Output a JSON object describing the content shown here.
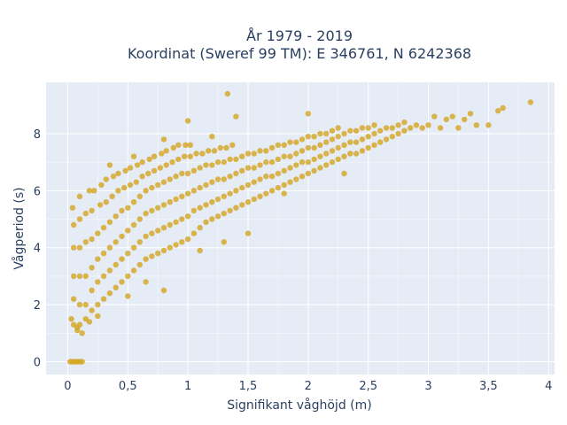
{
  "chart_data": {
    "type": "scatter",
    "title_line1": "År 1979 - 2019",
    "title_line2": "Koordinat (Sweref 99 TM): E 346761, N 6242368",
    "xlabel": "Signifikant våghöjd (m)",
    "ylabel": "Vågperiod (s)",
    "xlim": [
      -0.18,
      4.05
    ],
    "ylim": [
      -0.45,
      9.8
    ],
    "xticks": [
      0,
      0.5,
      1,
      1.5,
      2,
      2.5,
      3,
      3.5,
      4
    ],
    "xtick_labels": [
      "0",
      "0,5",
      "1",
      "1,5",
      "2",
      "2,5",
      "3",
      "3,5",
      "4"
    ],
    "yticks": [
      0,
      2,
      4,
      6,
      8
    ],
    "ytick_labels": [
      "0",
      "2",
      "4",
      "6",
      "8"
    ],
    "grid": true,
    "plot_bgcolor": "#E5ECF6",
    "marker_color": "#D4A520",
    "points": [
      [
        0.02,
        0.0
      ],
      [
        0.04,
        0.0
      ],
      [
        0.06,
        0.0
      ],
      [
        0.08,
        0.0
      ],
      [
        0.1,
        0.0
      ],
      [
        0.12,
        0.0
      ],
      [
        0.03,
        1.5
      ],
      [
        0.05,
        1.3
      ],
      [
        0.08,
        1.2
      ],
      [
        0.1,
        1.3
      ],
      [
        0.15,
        1.5
      ],
      [
        0.05,
        2.2
      ],
      [
        0.05,
        3.0
      ],
      [
        0.05,
        4.0
      ],
      [
        0.05,
        4.8
      ],
      [
        0.04,
        5.4
      ],
      [
        0.1,
        2.0
      ],
      [
        0.1,
        3.0
      ],
      [
        0.1,
        4.0
      ],
      [
        0.1,
        5.0
      ],
      [
        0.1,
        5.8
      ],
      [
        0.15,
        2.0
      ],
      [
        0.15,
        3.0
      ],
      [
        0.15,
        4.2
      ],
      [
        0.15,
        5.2
      ],
      [
        0.18,
        6.0
      ],
      [
        0.2,
        1.8
      ],
      [
        0.2,
        2.5
      ],
      [
        0.2,
        3.3
      ],
      [
        0.2,
        4.3
      ],
      [
        0.2,
        5.3
      ],
      [
        0.22,
        6.0
      ],
      [
        0.25,
        2.0
      ],
      [
        0.25,
        2.8
      ],
      [
        0.25,
        3.6
      ],
      [
        0.25,
        4.5
      ],
      [
        0.27,
        5.5
      ],
      [
        0.28,
        6.2
      ],
      [
        0.3,
        2.2
      ],
      [
        0.3,
        3.0
      ],
      [
        0.3,
        3.8
      ],
      [
        0.3,
        4.7
      ],
      [
        0.32,
        5.6
      ],
      [
        0.32,
        6.4
      ],
      [
        0.35,
        2.4
      ],
      [
        0.35,
        3.2
      ],
      [
        0.35,
        4.0
      ],
      [
        0.35,
        4.9
      ],
      [
        0.37,
        5.8
      ],
      [
        0.38,
        6.5
      ],
      [
        0.4,
        2.6
      ],
      [
        0.4,
        3.4
      ],
      [
        0.4,
        4.2
      ],
      [
        0.4,
        5.1
      ],
      [
        0.42,
        6.0
      ],
      [
        0.42,
        6.6
      ],
      [
        0.45,
        2.8
      ],
      [
        0.45,
        3.6
      ],
      [
        0.45,
        4.4
      ],
      [
        0.45,
        5.3
      ],
      [
        0.47,
        6.1
      ],
      [
        0.48,
        6.7
      ],
      [
        0.5,
        3.0
      ],
      [
        0.5,
        3.8
      ],
      [
        0.5,
        4.6
      ],
      [
        0.5,
        5.4
      ],
      [
        0.52,
        6.2
      ],
      [
        0.52,
        6.8
      ],
      [
        0.55,
        3.2
      ],
      [
        0.55,
        4.0
      ],
      [
        0.55,
        4.8
      ],
      [
        0.55,
        5.6
      ],
      [
        0.57,
        6.3
      ],
      [
        0.58,
        6.9
      ],
      [
        0.6,
        3.4
      ],
      [
        0.6,
        4.2
      ],
      [
        0.6,
        5.0
      ],
      [
        0.6,
        5.8
      ],
      [
        0.62,
        6.5
      ],
      [
        0.62,
        7.0
      ],
      [
        0.65,
        3.6
      ],
      [
        0.65,
        4.4
      ],
      [
        0.65,
        5.2
      ],
      [
        0.65,
        6.0
      ],
      [
        0.67,
        6.6
      ],
      [
        0.68,
        7.1
      ],
      [
        0.7,
        3.7
      ],
      [
        0.7,
        4.5
      ],
      [
        0.7,
        5.3
      ],
      [
        0.7,
        6.1
      ],
      [
        0.72,
        6.7
      ],
      [
        0.72,
        7.2
      ],
      [
        0.75,
        3.8
      ],
      [
        0.75,
        4.6
      ],
      [
        0.75,
        5.4
      ],
      [
        0.75,
        6.2
      ],
      [
        0.77,
        6.8
      ],
      [
        0.78,
        7.3
      ],
      [
        0.8,
        3.9
      ],
      [
        0.8,
        4.7
      ],
      [
        0.8,
        5.5
      ],
      [
        0.8,
        6.3
      ],
      [
        0.82,
        6.9
      ],
      [
        0.82,
        7.4
      ],
      [
        0.85,
        4.0
      ],
      [
        0.85,
        4.8
      ],
      [
        0.85,
        5.6
      ],
      [
        0.85,
        6.4
      ],
      [
        0.87,
        7.0
      ],
      [
        0.88,
        7.5
      ],
      [
        0.9,
        4.1
      ],
      [
        0.9,
        4.9
      ],
      [
        0.9,
        5.7
      ],
      [
        0.9,
        6.5
      ],
      [
        0.92,
        7.1
      ],
      [
        0.92,
        7.6
      ],
      [
        0.95,
        4.2
      ],
      [
        0.95,
        5.0
      ],
      [
        0.95,
        5.8
      ],
      [
        0.95,
        6.6
      ],
      [
        0.97,
        7.2
      ],
      [
        0.98,
        7.6
      ],
      [
        1.0,
        4.3
      ],
      [
        1.0,
        5.1
      ],
      [
        1.0,
        5.9
      ],
      [
        1.0,
        6.6
      ],
      [
        1.02,
        7.2
      ],
      [
        1.02,
        7.6
      ],
      [
        1.05,
        4.5
      ],
      [
        1.05,
        5.3
      ],
      [
        1.05,
        6.0
      ],
      [
        1.05,
        6.7
      ],
      [
        1.07,
        7.3
      ],
      [
        1.1,
        4.7
      ],
      [
        1.1,
        5.4
      ],
      [
        1.1,
        6.1
      ],
      [
        1.1,
        6.8
      ],
      [
        1.12,
        7.3
      ],
      [
        1.15,
        4.9
      ],
      [
        1.15,
        5.5
      ],
      [
        1.15,
        6.2
      ],
      [
        1.15,
        6.9
      ],
      [
        1.17,
        7.4
      ],
      [
        1.2,
        5.0
      ],
      [
        1.2,
        5.6
      ],
      [
        1.2,
        6.3
      ],
      [
        1.2,
        6.9
      ],
      [
        1.22,
        7.4
      ],
      [
        1.25,
        5.1
      ],
      [
        1.25,
        5.7
      ],
      [
        1.25,
        6.4
      ],
      [
        1.25,
        7.0
      ],
      [
        1.27,
        7.5
      ],
      [
        1.3,
        5.2
      ],
      [
        1.3,
        5.8
      ],
      [
        1.3,
        6.4
      ],
      [
        1.3,
        7.0
      ],
      [
        1.32,
        7.5
      ],
      [
        1.35,
        5.3
      ],
      [
        1.35,
        5.9
      ],
      [
        1.35,
        6.5
      ],
      [
        1.35,
        7.1
      ],
      [
        1.37,
        7.6
      ],
      [
        1.4,
        5.4
      ],
      [
        1.4,
        6.0
      ],
      [
        1.4,
        6.6
      ],
      [
        1.4,
        7.1
      ],
      [
        1.45,
        5.5
      ],
      [
        1.45,
        6.1
      ],
      [
        1.45,
        6.7
      ],
      [
        1.45,
        7.2
      ],
      [
        1.5,
        5.6
      ],
      [
        1.5,
        6.2
      ],
      [
        1.5,
        6.8
      ],
      [
        1.5,
        7.3
      ],
      [
        1.55,
        5.7
      ],
      [
        1.55,
        6.3
      ],
      [
        1.55,
        6.8
      ],
      [
        1.55,
        7.3
      ],
      [
        1.6,
        5.8
      ],
      [
        1.6,
        6.4
      ],
      [
        1.6,
        6.9
      ],
      [
        1.6,
        7.4
      ],
      [
        1.65,
        5.9
      ],
      [
        1.65,
        6.5
      ],
      [
        1.65,
        7.0
      ],
      [
        1.65,
        7.4
      ],
      [
        1.7,
        6.0
      ],
      [
        1.7,
        6.5
      ],
      [
        1.7,
        7.0
      ],
      [
        1.7,
        7.5
      ],
      [
        1.75,
        6.1
      ],
      [
        1.75,
        6.6
      ],
      [
        1.75,
        7.1
      ],
      [
        1.75,
        7.6
      ],
      [
        1.8,
        6.2
      ],
      [
        1.8,
        6.7
      ],
      [
        1.8,
        7.2
      ],
      [
        1.8,
        7.6
      ],
      [
        1.85,
        6.3
      ],
      [
        1.85,
        6.8
      ],
      [
        1.85,
        7.2
      ],
      [
        1.85,
        7.7
      ],
      [
        1.9,
        6.4
      ],
      [
        1.9,
        6.9
      ],
      [
        1.9,
        7.3
      ],
      [
        1.9,
        7.7
      ],
      [
        1.95,
        6.5
      ],
      [
        1.95,
        7.0
      ],
      [
        1.95,
        7.4
      ],
      [
        1.95,
        7.8
      ],
      [
        2.0,
        6.6
      ],
      [
        2.0,
        7.0
      ],
      [
        2.0,
        7.5
      ],
      [
        2.0,
        7.9
      ],
      [
        2.05,
        6.7
      ],
      [
        2.05,
        7.1
      ],
      [
        2.05,
        7.5
      ],
      [
        2.05,
        7.9
      ],
      [
        2.1,
        6.8
      ],
      [
        2.1,
        7.2
      ],
      [
        2.1,
        7.6
      ],
      [
        2.1,
        8.0
      ],
      [
        2.15,
        6.9
      ],
      [
        2.15,
        7.3
      ],
      [
        2.15,
        7.7
      ],
      [
        2.15,
        8.0
      ],
      [
        2.2,
        7.0
      ],
      [
        2.2,
        7.4
      ],
      [
        2.2,
        7.8
      ],
      [
        2.2,
        8.1
      ],
      [
        2.25,
        7.1
      ],
      [
        2.25,
        7.5
      ],
      [
        2.25,
        7.9
      ],
      [
        2.25,
        8.2
      ],
      [
        2.3,
        7.2
      ],
      [
        2.3,
        7.6
      ],
      [
        2.3,
        8.0
      ],
      [
        2.35,
        7.3
      ],
      [
        2.35,
        7.7
      ],
      [
        2.35,
        8.1
      ],
      [
        2.4,
        7.3
      ],
      [
        2.4,
        7.7
      ],
      [
        2.4,
        8.1
      ],
      [
        2.45,
        7.4
      ],
      [
        2.45,
        7.8
      ],
      [
        2.45,
        8.2
      ],
      [
        2.5,
        7.5
      ],
      [
        2.5,
        7.9
      ],
      [
        2.5,
        8.2
      ],
      [
        2.55,
        7.6
      ],
      [
        2.55,
        8.0
      ],
      [
        2.55,
        8.3
      ],
      [
        2.6,
        7.7
      ],
      [
        2.6,
        8.1
      ],
      [
        2.65,
        7.8
      ],
      [
        2.65,
        8.2
      ],
      [
        2.7,
        7.9
      ],
      [
        2.7,
        8.2
      ],
      [
        2.75,
        8.0
      ],
      [
        2.75,
        8.3
      ],
      [
        2.8,
        8.1
      ],
      [
        2.8,
        8.4
      ],
      [
        2.85,
        8.2
      ],
      [
        2.9,
        8.3
      ],
      [
        2.95,
        8.2
      ],
      [
        3.0,
        8.3
      ],
      [
        3.05,
        8.6
      ],
      [
        3.1,
        8.2
      ],
      [
        3.15,
        8.5
      ],
      [
        3.2,
        8.6
      ],
      [
        3.25,
        8.2
      ],
      [
        3.3,
        8.5
      ],
      [
        3.35,
        8.7
      ],
      [
        3.4,
        8.3
      ],
      [
        3.5,
        8.3
      ],
      [
        3.58,
        8.8
      ],
      [
        3.62,
        8.9
      ],
      [
        3.85,
        9.1
      ],
      [
        1.33,
        9.4
      ],
      [
        1.0,
        8.45
      ],
      [
        1.4,
        8.6
      ],
      [
        2.0,
        8.7
      ],
      [
        1.2,
        7.9
      ],
      [
        0.8,
        7.8
      ],
      [
        0.55,
        7.2
      ],
      [
        0.35,
        6.9
      ],
      [
        1.5,
        4.5
      ],
      [
        1.1,
        3.9
      ],
      [
        1.3,
        4.2
      ],
      [
        0.8,
        2.5
      ],
      [
        0.65,
        2.8
      ],
      [
        0.5,
        2.3
      ],
      [
        0.25,
        1.6
      ],
      [
        0.12,
        1.0
      ],
      [
        0.08,
        1.1
      ],
      [
        0.18,
        1.4
      ],
      [
        1.8,
        5.9
      ],
      [
        2.3,
        6.6
      ]
    ]
  }
}
